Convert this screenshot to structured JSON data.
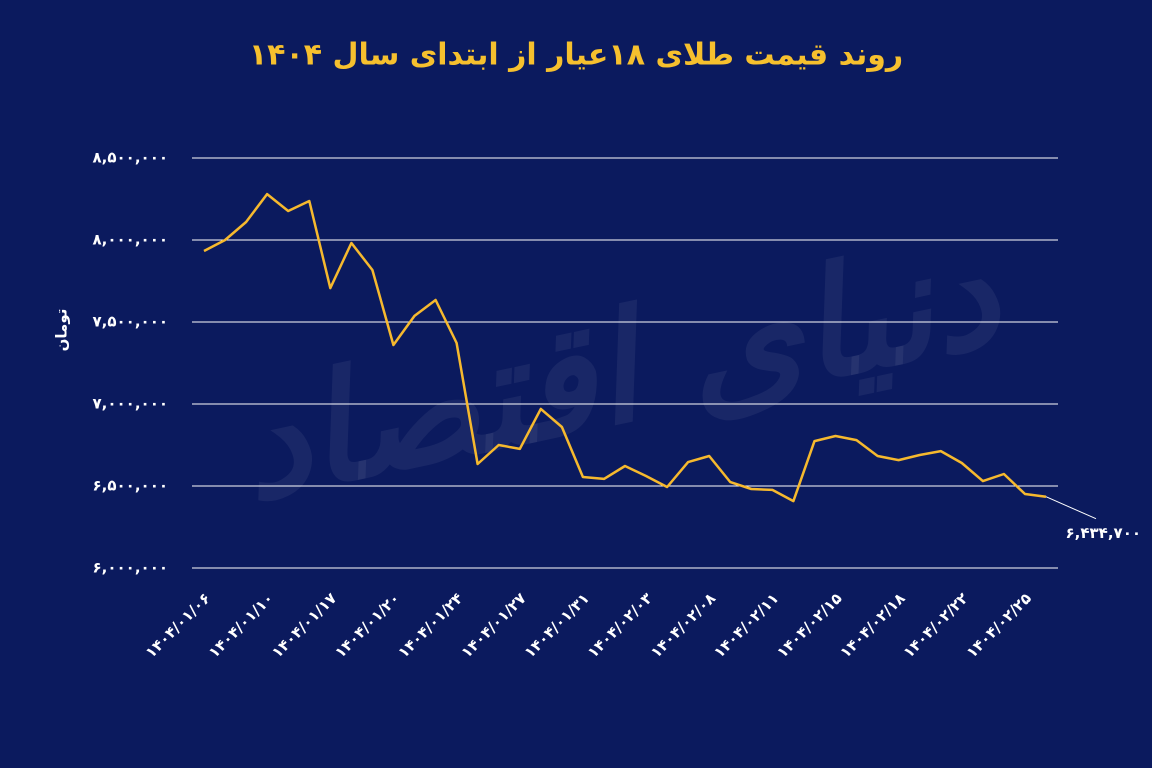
{
  "chart_data": {
    "type": "line",
    "title": "روند قیمت طلای ۱۸عیار از ابتدای سال ۱۴۰۴",
    "y_label": "تومان",
    "watermark": "دنیای اقتصاد",
    "color": "#f6b92e",
    "grid": true,
    "categories": [
      "۱۴۰۴/۰۱/۰۶",
      null,
      null,
      "۱۴۰۴/۰۱/۱۰",
      null,
      null,
      "۱۴۰۴/۰۱/۱۷",
      null,
      null,
      "۱۴۰۴/۰۱/۲۰",
      null,
      null,
      "۱۴۰۴/۰۱/۲۴",
      null,
      null,
      "۱۴۰۴/۰۱/۲۷",
      null,
      null,
      "۱۴۰۴/۰۱/۳۱",
      null,
      null,
      "۱۴۰۴/۰۲/۰۳",
      null,
      null,
      "۱۴۰۴/۰۲/۰۸",
      null,
      null,
      "۱۴۰۴/۰۲/۱۱",
      null,
      null,
      "۱۴۰۴/۰۲/۱۵",
      null,
      null,
      "۱۴۰۴/۰۲/۱۸",
      null,
      null,
      "۱۴۰۴/۰۲/۲۲",
      null,
      null,
      "۱۴۰۴/۰۲/۲۵",
      null
    ],
    "values": [
      7933000,
      8000000,
      8110000,
      8280000,
      8177000,
      8238000,
      7707000,
      7982000,
      7817000,
      7360000,
      7537000,
      7634000,
      7372000,
      6634000,
      6750000,
      6726000,
      6970000,
      6860000,
      6555000,
      6543000,
      6622000,
      6561000,
      6494000,
      6646000,
      6683000,
      6524000,
      6482000,
      6476000,
      6408000,
      6774000,
      6805000,
      6780000,
      6683000,
      6658000,
      6689000,
      6713000,
      6640000,
      6530000,
      6573000,
      6451000,
      6434700
    ],
    "value_labels": [
      null,
      null,
      null,
      null,
      null,
      null,
      null,
      null,
      null,
      null,
      null,
      null,
      null,
      null,
      null,
      null,
      null,
      null,
      null,
      null,
      null,
      null,
      null,
      null,
      null,
      null,
      null,
      null,
      null,
      null,
      null,
      null,
      null,
      null,
      null,
      null,
      null,
      null,
      null,
      null,
      "۶,۴۳۴,۷۰۰"
    ],
    "ylim": [
      6000000,
      8500000
    ],
    "yticks": [
      {
        "value": 6000000,
        "label": "۶,۰۰۰,۰۰۰"
      },
      {
        "value": 6500000,
        "label": "۶,۵۰۰,۰۰۰"
      },
      {
        "value": 7000000,
        "label": "۷,۰۰۰,۰۰۰"
      },
      {
        "value": 7500000,
        "label": "۷,۵۰۰,۰۰۰"
      },
      {
        "value": 8000000,
        "label": "۸,۰۰۰,۰۰۰"
      },
      {
        "value": 8500000,
        "label": "۸,۵۰۰,۰۰۰"
      }
    ]
  }
}
